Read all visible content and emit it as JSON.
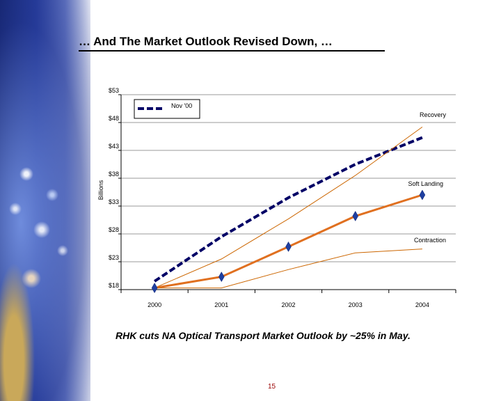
{
  "slide": {
    "title": "… And The Market Outlook Revised Down, …",
    "caption": "RHK cuts NA Optical Transport Market Outlook by ~25% in May.",
    "page_number": "15"
  },
  "colors": {
    "nov00": "#000066",
    "scenario": "#cc6600",
    "soft_landing": "#e07020",
    "marker": "#1f3fa0",
    "grid": "#999999"
  },
  "chart_data": {
    "type": "line",
    "ylabel": "Billions",
    "ylim": [
      18,
      53
    ],
    "yticks": [
      18,
      23,
      28,
      33,
      38,
      43,
      48,
      53
    ],
    "ytick_labels": [
      "$18",
      "$23",
      "$28",
      "$33",
      "$38",
      "$43",
      "$48",
      "$53"
    ],
    "categories": [
      "2000",
      "2001",
      "2002",
      "2003",
      "2004"
    ],
    "grid": true,
    "legend": {
      "position": "top-left",
      "entries": [
        "Nov '00"
      ]
    },
    "series": [
      {
        "name": "Nov '00",
        "style": "dashed",
        "values": [
          19.5,
          27.5,
          34.5,
          40.5,
          45.3
        ]
      },
      {
        "name": "Recovery",
        "style": "thin",
        "values": [
          18.3,
          23.5,
          30.7,
          38.5,
          47.2
        ]
      },
      {
        "name": "Soft Landing",
        "style": "thick-markers",
        "values": [
          18.3,
          20.3,
          25.7,
          31.2,
          35
        ]
      },
      {
        "name": "Contraction",
        "style": "thin",
        "values": [
          18.3,
          18.3,
          21.6,
          24.6,
          25.3
        ]
      }
    ]
  }
}
